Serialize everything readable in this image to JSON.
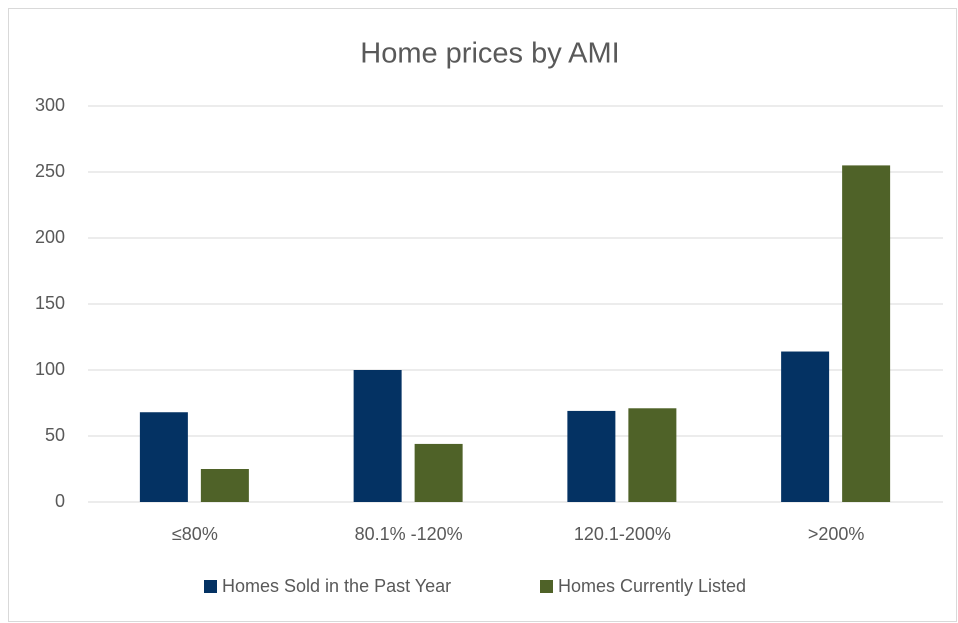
{
  "chart_data": {
    "type": "bar",
    "title": "Home prices by AMI",
    "categories": [
      "≤80%",
      "80.1% -120%",
      "120.1-200%",
      ">200%"
    ],
    "series": [
      {
        "name": "Homes Sold in the Past Year",
        "color": "#043263",
        "values": [
          68,
          100,
          69,
          114
        ]
      },
      {
        "name": "Homes Currently Listed",
        "color": "#4f6228",
        "values": [
          25,
          44,
          71,
          255
        ]
      }
    ],
    "ylim": [
      0,
      300
    ],
    "yticks": [
      0,
      50,
      100,
      150,
      200,
      250,
      300
    ],
    "grid": true,
    "legend": "bottom"
  }
}
